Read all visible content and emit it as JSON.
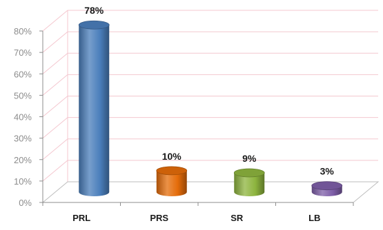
{
  "chart_data": {
    "type": "bar",
    "style": "3d-cylinder",
    "categories": [
      "PRL",
      "PRS",
      "SR",
      "LB"
    ],
    "values": [
      78,
      10,
      9,
      3
    ],
    "data_labels": [
      "78%",
      "10%",
      "9%",
      "3%"
    ],
    "colors": [
      "#4a7ebb",
      "#e46c0a",
      "#8db43e",
      "#7e5ea8"
    ],
    "y_ticks": [
      "0%",
      "10%",
      "20%",
      "30%",
      "40%",
      "50%",
      "60%",
      "70%",
      "80%"
    ],
    "ylim": [
      0,
      80
    ],
    "grid": true,
    "grid_color": "#f4c7cf",
    "legend": "none"
  }
}
